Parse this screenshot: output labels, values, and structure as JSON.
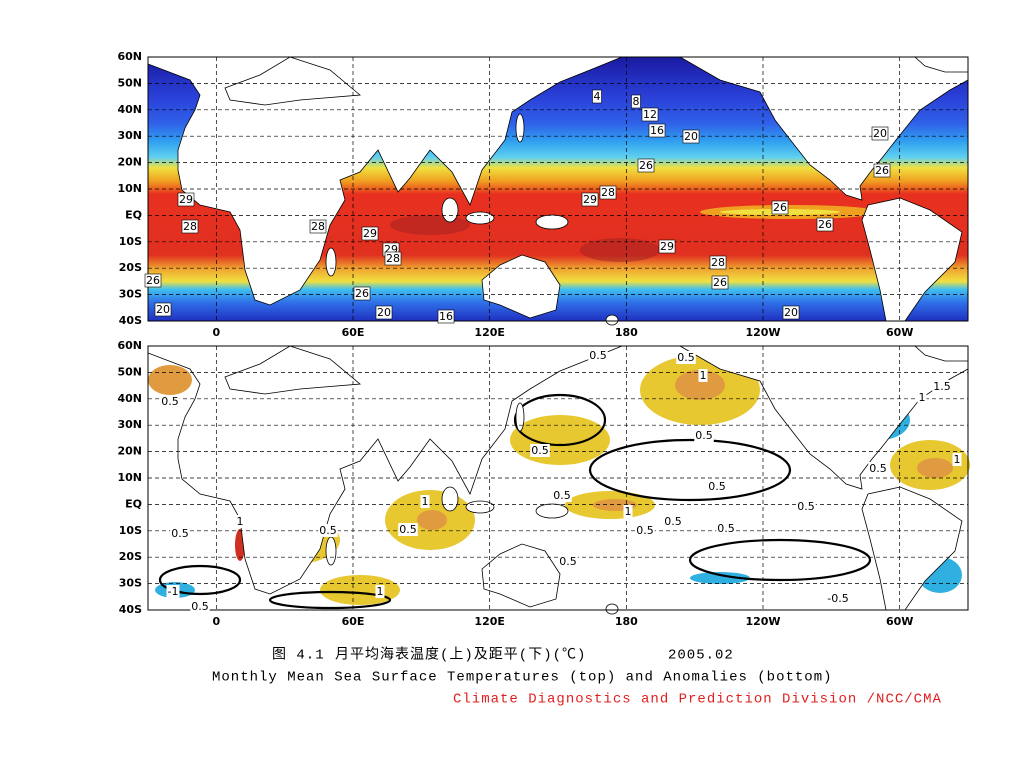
{
  "lat_lim": [
    -40,
    60
  ],
  "lon_lim": [
    -30,
    330
  ],
  "lat_ticks": [
    {
      "value": 60,
      "label": "60N"
    },
    {
      "value": 50,
      "label": "50N"
    },
    {
      "value": 40,
      "label": "40N"
    },
    {
      "value": 30,
      "label": "30N"
    },
    {
      "value": 20,
      "label": "20N"
    },
    {
      "value": 10,
      "label": "10N"
    },
    {
      "value": 0,
      "label": "EQ"
    },
    {
      "value": -10,
      "label": "10S"
    },
    {
      "value": -20,
      "label": "20S"
    },
    {
      "value": -30,
      "label": "30S"
    },
    {
      "value": -40,
      "label": "40S"
    }
  ],
  "lon_ticks": [
    0,
    {
      "value": 60,
      "label": "60E"
    },
    {
      "value": 120,
      "label": "120E"
    },
    180,
    {
      "value": 240,
      "label": "120W"
    },
    {
      "value": 300,
      "label": "60W"
    }
  ],
  "sst_contour_labels": [
    4,
    8,
    12,
    16,
    20,
    20,
    26,
    26,
    29,
    28,
    28,
    29,
    29,
    28,
    29,
    28,
    26,
    26,
    29,
    28,
    26,
    26,
    20,
    16,
    20,
    26,
    20
  ],
  "anomaly_contour_labels": [
    0.5,
    0.5,
    1,
    1.5,
    1,
    0.5,
    0.5,
    0.5,
    1,
    0.5,
    0.5,
    0.5,
    1,
    1,
    0.5,
    0.5,
    0.5,
    0.5,
    1,
    0.5,
    0.5,
    0.5,
    0.5,
    -1,
    1,
    0.5,
    -0.5
  ],
  "caption": {
    "figure": "图 4.1",
    "title_zh": "月平均海表温度(上)及距平(下)(℃)",
    "date": "2005.02",
    "title_en": "Monthly Mean Sea Surface Temperatures (top)  and Anomalies (bottom)",
    "credit": "Climate Diagnostics and Prediction Division /NCC/CMA"
  }
}
